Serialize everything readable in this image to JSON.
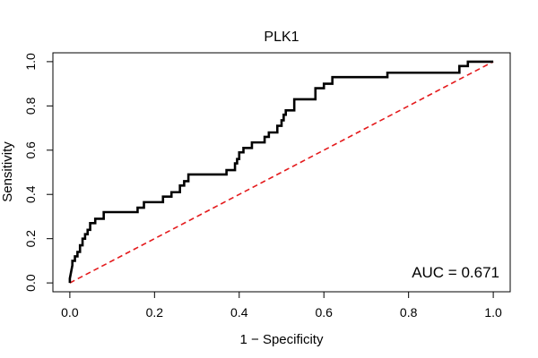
{
  "chart_data": {
    "type": "line",
    "title": "PLK1",
    "xlabel": "1 − Specificity",
    "ylabel": "Sensitivity",
    "xlim": [
      -0.04,
      1.04
    ],
    "ylim": [
      -0.04,
      1.04
    ],
    "x_ticks": [
      0.0,
      0.2,
      0.4,
      0.6,
      0.8,
      1.0
    ],
    "x_tick_labels": [
      "0.0",
      "0.2",
      "0.4",
      "0.6",
      "0.8",
      "1.0"
    ],
    "y_ticks": [
      0.0,
      0.2,
      0.4,
      0.6,
      0.8,
      1.0
    ],
    "y_tick_labels": [
      "0.0",
      "0.2",
      "0.4",
      "0.6",
      "0.8",
      "1.0"
    ],
    "grid": false,
    "annotation": "AUC = 0.671",
    "annotation_position": "bottom-right",
    "series": [
      {
        "color": "#000000",
        "style": "solid",
        "x": [
          0.0,
          0.0,
          0.003,
          0.006,
          0.006,
          0.012,
          0.012,
          0.018,
          0.018,
          0.024,
          0.024,
          0.03,
          0.03,
          0.036,
          0.036,
          0.042,
          0.042,
          0.048,
          0.048,
          0.054,
          0.054,
          0.06,
          0.06,
          0.08,
          0.08,
          0.1,
          0.1,
          0.16,
          0.16,
          0.175,
          0.175,
          0.22,
          0.22,
          0.24,
          0.24,
          0.26,
          0.26,
          0.27,
          0.27,
          0.28,
          0.28,
          0.37,
          0.37,
          0.39,
          0.39,
          0.395,
          0.395,
          0.4,
          0.4,
          0.41,
          0.41,
          0.43,
          0.43,
          0.46,
          0.46,
          0.47,
          0.47,
          0.49,
          0.49,
          0.5,
          0.5,
          0.505,
          0.505,
          0.51,
          0.51,
          0.53,
          0.53,
          0.58,
          0.58,
          0.6,
          0.6,
          0.62,
          0.62,
          0.63,
          0.63,
          0.75,
          0.75,
          0.92,
          0.92,
          0.94,
          0.94,
          1.0
        ],
        "y": [
          0.0,
          0.02,
          0.05,
          0.08,
          0.1,
          0.1,
          0.12,
          0.12,
          0.14,
          0.14,
          0.17,
          0.17,
          0.2,
          0.2,
          0.22,
          0.22,
          0.24,
          0.24,
          0.27,
          0.27,
          0.27,
          0.27,
          0.29,
          0.29,
          0.32,
          0.32,
          0.32,
          0.32,
          0.34,
          0.34,
          0.365,
          0.365,
          0.39,
          0.39,
          0.41,
          0.41,
          0.44,
          0.44,
          0.46,
          0.46,
          0.49,
          0.49,
          0.51,
          0.51,
          0.54,
          0.54,
          0.56,
          0.56,
          0.59,
          0.59,
          0.61,
          0.61,
          0.635,
          0.635,
          0.66,
          0.66,
          0.68,
          0.68,
          0.71,
          0.71,
          0.735,
          0.735,
          0.76,
          0.76,
          0.78,
          0.78,
          0.83,
          0.83,
          0.88,
          0.88,
          0.9,
          0.9,
          0.93,
          0.93,
          0.93,
          0.93,
          0.95,
          0.95,
          0.98,
          0.98,
          1.0,
          1.0
        ]
      },
      {
        "color": "#e41a1c",
        "style": "dashed",
        "x": [
          0.0,
          1.0
        ],
        "y": [
          0.0,
          1.0
        ]
      }
    ]
  }
}
